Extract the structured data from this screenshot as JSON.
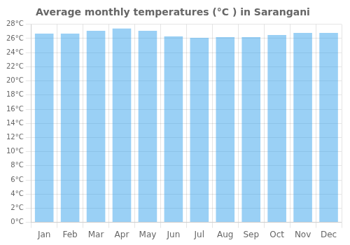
{
  "chart_data": {
    "type": "bar",
    "title": "Average monthly temperatures (°C ) in Sarangani",
    "categories": [
      "Jan",
      "Feb",
      "Mar",
      "Apr",
      "May",
      "Jun",
      "Jul",
      "Aug",
      "Sep",
      "Oct",
      "Nov",
      "Dec"
    ],
    "values": [
      26.7,
      26.7,
      27.1,
      27.4,
      27.1,
      26.3,
      26.1,
      26.2,
      26.2,
      26.5,
      26.8,
      26.8
    ],
    "ylim": [
      0,
      28
    ],
    "yticks": [
      {
        "value": 0,
        "label": "0°C"
      },
      {
        "value": 2,
        "label": "2°C"
      },
      {
        "value": 4,
        "label": "4°C"
      },
      {
        "value": 6,
        "label": "6°C"
      },
      {
        "value": 8,
        "label": "8°C"
      },
      {
        "value": 10,
        "label": "10°C"
      },
      {
        "value": 12,
        "label": "12°C"
      },
      {
        "value": 14,
        "label": "14°C"
      },
      {
        "value": 16,
        "label": "16°C"
      },
      {
        "value": 18,
        "label": "18°C"
      },
      {
        "value": 20,
        "label": "20°C"
      },
      {
        "value": 22,
        "label": "22°C"
      },
      {
        "value": 24,
        "label": "24°C"
      },
      {
        "value": 26,
        "label": "26°C"
      },
      {
        "value": 28,
        "label": "28°C"
      }
    ],
    "grid": true
  }
}
